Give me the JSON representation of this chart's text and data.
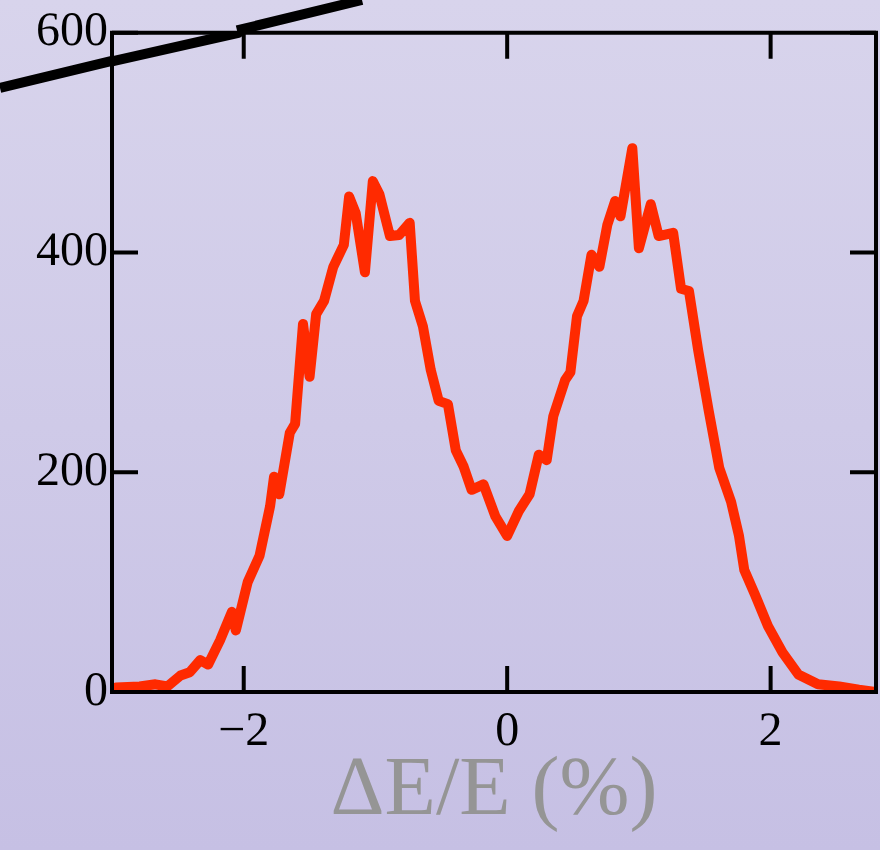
{
  "chart_data": {
    "type": "line",
    "xlabel": "ΔE/E (%)",
    "xlim": [
      -3,
      2.8
    ],
    "ylim": [
      0,
      600
    ],
    "xticks": [
      {
        "value": -2,
        "label": "−2"
      },
      0,
      2
    ],
    "yticks": [
      0,
      200,
      400,
      600
    ],
    "grid": false,
    "legend": false,
    "marker": "none",
    "line_style": "solid",
    "series": [
      {
        "color": "#000000",
        "x": [
          -3,
          -2.04
        ],
        "values": [
          574,
          600
        ]
      },
      {
        "color": "#ff2a00",
        "x": [
          -2.97,
          -2.79,
          -2.67,
          -2.58,
          -2.48,
          -2.41,
          -2.33,
          -2.27,
          -2.18,
          -2.09,
          -2.06,
          -1.97,
          -1.88,
          -1.8,
          -1.77,
          -1.73,
          -1.65,
          -1.61,
          -1.55,
          -1.5,
          -1.45,
          -1.39,
          -1.32,
          -1.24,
          -1.2,
          -1.15,
          -1.08,
          -1.02,
          -0.97,
          -0.89,
          -0.82,
          -0.74,
          -0.7,
          -0.64,
          -0.58,
          -0.52,
          -0.45,
          -0.39,
          -0.33,
          -0.27,
          -0.18,
          -0.09,
          0,
          0.09,
          0.17,
          0.24,
          0.3,
          0.35,
          0.44,
          0.48,
          0.53,
          0.58,
          0.64,
          0.7,
          0.76,
          0.82,
          0.86,
          0.95,
          1.0,
          1.09,
          1.15,
          1.26,
          1.32,
          1.38,
          1.45,
          1.53,
          1.61,
          1.7,
          1.76,
          1.8,
          1.88,
          1.98,
          2.09,
          2.21,
          2.36,
          2.52,
          2.67,
          2.8
        ],
        "values": [
          4,
          5,
          7,
          5,
          15,
          18,
          29,
          25,
          47,
          73,
          56,
          100,
          124,
          169,
          196,
          180,
          236,
          244,
          335,
          287,
          344,
          356,
          387,
          407,
          451,
          436,
          382,
          465,
          453,
          415,
          416,
          427,
          356,
          333,
          293,
          265,
          262,
          220,
          205,
          184,
          189,
          160,
          142,
          165,
          180,
          216,
          211,
          251,
          284,
          291,
          342,
          356,
          398,
          387,
          425,
          447,
          433,
          495,
          404,
          444,
          415,
          418,
          367,
          365,
          311,
          256,
          204,
          173,
          142,
          111,
          89,
          60,
          36,
          16,
          7,
          5,
          2,
          0
        ]
      }
    ]
  }
}
